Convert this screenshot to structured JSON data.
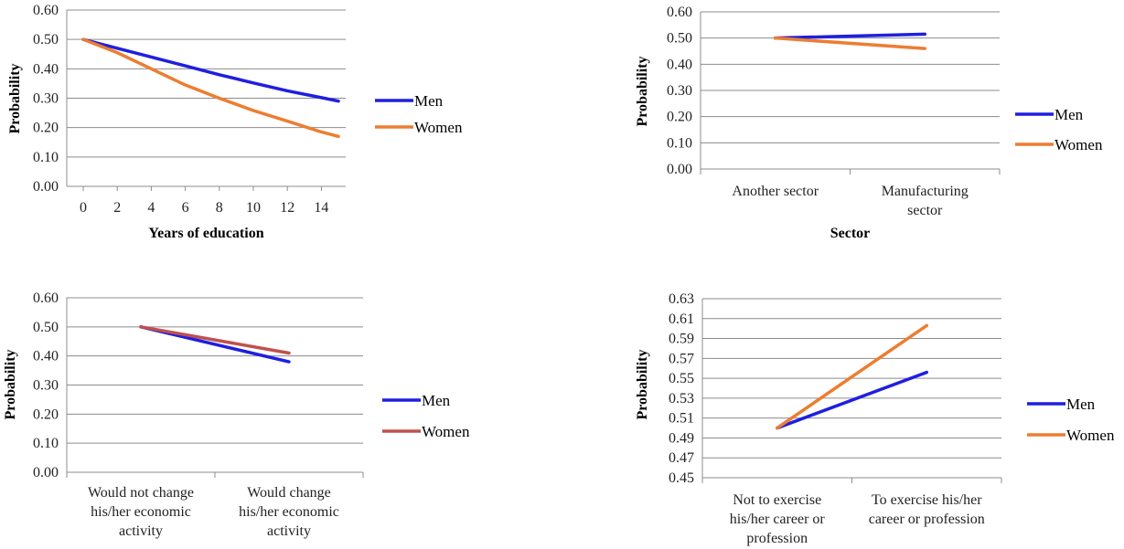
{
  "chart_data": [
    {
      "type": "line",
      "xlabel": "Years of education",
      "ylabel": "Probability",
      "x_axis": "numeric",
      "xlim": [
        0,
        15
      ],
      "x_ticks": [
        "0",
        "2",
        "4",
        "6",
        "8",
        "10",
        "12",
        "14"
      ],
      "ylim": [
        0,
        0.6
      ],
      "y_ticks": [
        "0.00",
        "0.10",
        "0.20",
        "0.30",
        "0.40",
        "0.50",
        "0.60"
      ],
      "grid": true,
      "legend": "right",
      "series": [
        {
          "name": "Men",
          "color": "#1f1fe0",
          "x": [
            0,
            2,
            4,
            6,
            8,
            10,
            12,
            14,
            15
          ],
          "y": [
            0.5,
            0.47,
            0.44,
            0.41,
            0.38,
            0.352,
            0.325,
            0.302,
            0.29
          ]
        },
        {
          "name": "Women",
          "color": "#ed7d31",
          "x": [
            0,
            2,
            4,
            6,
            8,
            10,
            12,
            14,
            15
          ],
          "y": [
            0.5,
            0.455,
            0.4,
            0.345,
            0.3,
            0.258,
            0.222,
            0.185,
            0.17
          ]
        }
      ]
    },
    {
      "type": "line",
      "xlabel": "Sector",
      "ylabel": "Probability",
      "x_axis": "category",
      "categories": [
        [
          "Another sector"
        ],
        [
          "Manufacturing",
          "sector"
        ]
      ],
      "ylim": [
        0,
        0.6
      ],
      "y_ticks": [
        "0.00",
        "0.10",
        "0.20",
        "0.30",
        "0.40",
        "0.50",
        "0.60"
      ],
      "grid": true,
      "legend": "right",
      "series": [
        {
          "name": "Men",
          "color": "#1f1fe0",
          "y": [
            0.5,
            0.515
          ]
        },
        {
          "name": "Women",
          "color": "#ed7d31",
          "y": [
            0.5,
            0.46
          ]
        }
      ]
    },
    {
      "type": "line",
      "xlabel": "",
      "ylabel": "Probability",
      "x_axis": "category",
      "categories": [
        [
          "Would not change",
          "his/her economic",
          "activity"
        ],
        [
          "Would change",
          "his/her economic",
          "activity"
        ]
      ],
      "ylim": [
        0,
        0.6
      ],
      "y_ticks": [
        "0.00",
        "0.10",
        "0.20",
        "0.30",
        "0.40",
        "0.50",
        "0.60"
      ],
      "grid": true,
      "legend": "right",
      "series": [
        {
          "name": "Men",
          "color": "#1f1fe0",
          "y": [
            0.5,
            0.38
          ]
        },
        {
          "name": "Women",
          "color": "#c0504d",
          "y": [
            0.5,
            0.41
          ]
        }
      ]
    },
    {
      "type": "line",
      "xlabel": "",
      "ylabel": "Probability",
      "x_axis": "category",
      "categories": [
        [
          "Not to exercise",
          "his/her career or",
          "profession"
        ],
        [
          "To exercise his/her",
          "career or profession"
        ]
      ],
      "ylim": [
        0.45,
        0.63
      ],
      "y_ticks": [
        "0.45",
        "0.47",
        "0.49",
        "0.51",
        "0.53",
        "0.55",
        "0.57",
        "0.59",
        "0.61",
        "0.63"
      ],
      "grid": true,
      "legend": "right",
      "series": [
        {
          "name": "Men",
          "color": "#1f1fe0",
          "y": [
            0.5,
            0.556
          ]
        },
        {
          "name": "Women",
          "color": "#ed7d31",
          "y": [
            0.5,
            0.603
          ]
        }
      ]
    }
  ]
}
